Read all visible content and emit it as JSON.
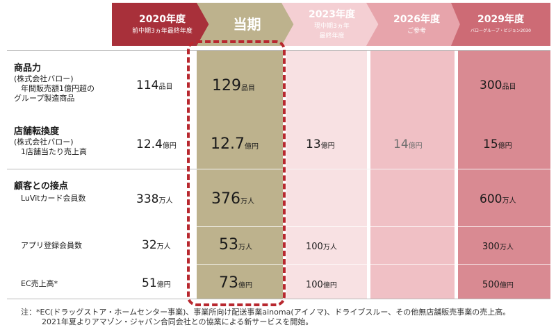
{
  "header": {
    "col_2020": {
      "title": "2020年度",
      "sub": "前中期3ヵ年最終年度"
    },
    "col_current": {
      "title": "当期"
    },
    "col_2023": {
      "title": "2023年度",
      "sub1": "現中期3ヵ年",
      "sub2": "最終年度"
    },
    "col_2026": {
      "title": "2026年度",
      "sub": "ご参考"
    },
    "col_2029": {
      "title": "2029年度",
      "sub": "バローグループ・ビジョン2030"
    }
  },
  "rows": {
    "product": {
      "heading": "商品力",
      "note1": "(株式会社バロー)",
      "note2": "年間販売額1億円超の",
      "note3": "グループ製造商品",
      "v2020": "114",
      "u2020": "品目",
      "vcur": "129",
      "ucur": "品目",
      "v2029": "300",
      "u2029": "品目"
    },
    "store": {
      "heading": "店舗転換度",
      "note1": "(株式会社バロー)",
      "note2": "1店舗当たり売上高",
      "v2020": "12.4",
      "u2020": "億円",
      "vcur": "12.7",
      "ucur": "億円",
      "v2023": "13",
      "u2023": "億円",
      "v2026": "14",
      "u2026": "億円",
      "v2029": "15",
      "u2029": "億円"
    },
    "customer": {
      "heading": "顧客との接点",
      "note1": "LuVitカード会員数",
      "v2020": "338",
      "u2020": "万人",
      "vcur": "376",
      "ucur": "万人",
      "v2029": "600",
      "u2029": "万人"
    },
    "app": {
      "label": "アプリ登録会員数",
      "v2020": "32",
      "u2020": "万人",
      "vcur": "53",
      "ucur": "万人",
      "v2023": "100",
      "u2023": "万人",
      "v2029": "300",
      "u2029": "万人"
    },
    "ec": {
      "label": "EC売上高*",
      "v2020": "51",
      "u2020": "億円",
      "vcur": "73",
      "ucur": "億円",
      "v2023": "100",
      "u2023": "億円",
      "v2029": "500",
      "u2029": "億円"
    }
  },
  "footnote": {
    "line1": "注：*EC(ドラッグストア・ホームセンター事業)、事業所向け配送事業ainoma(アイノマ)、ドライブスルー、その他無店舗販売事業の売上高。",
    "line2": "2021年夏よりアマゾン・ジャパン合同会社との協業による新サービスを開始。"
  },
  "colors": {
    "col_2020": "#a8303a",
    "col_current": "#bdb28d",
    "col_2023": "#f4cfd3",
    "col_2026": "#e7a4ab",
    "col_2029": "#cd6b75",
    "highlight": "#b8282f"
  }
}
